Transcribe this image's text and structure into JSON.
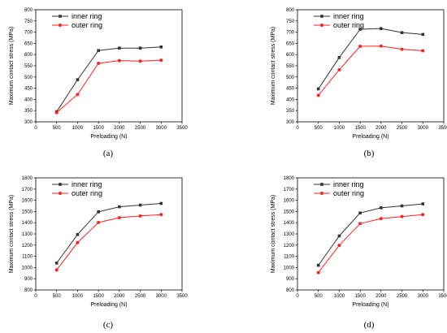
{
  "chart_data": [
    {
      "type": "line",
      "caption": "(a)",
      "xlabel": "Preloading (N)",
      "ylabel": "Maximum contact stress (MPa)",
      "xlim": [
        0,
        3500
      ],
      "ylim": [
        300,
        800
      ],
      "xticks": [
        0,
        500,
        1000,
        1500,
        2000,
        2500,
        3000,
        3500
      ],
      "yticks": [
        300,
        350,
        400,
        450,
        500,
        550,
        600,
        650,
        700,
        750,
        800
      ],
      "x": [
        500,
        1000,
        1500,
        2000,
        2500,
        3000
      ],
      "series": [
        {
          "name": "inner ring",
          "color": "#333333",
          "marker": "square",
          "values": [
            345,
            488,
            618,
            629,
            629,
            634
          ]
        },
        {
          "name": "outer ring",
          "color": "#ff2222",
          "marker": "circle",
          "values": [
            341,
            422,
            561,
            573,
            571,
            575
          ]
        }
      ],
      "legend": "top-left"
    },
    {
      "type": "line",
      "caption": "(b)",
      "xlabel": "Preloading (N)",
      "ylabel": "Maximum contact stress (MPa)",
      "xlim": [
        0,
        3500
      ],
      "ylim": [
        300,
        800
      ],
      "xticks": [
        0,
        500,
        1000,
        1500,
        2000,
        2500,
        3000,
        3500
      ],
      "yticks": [
        300,
        350,
        400,
        450,
        500,
        550,
        600,
        650,
        700,
        750,
        800
      ],
      "x": [
        500,
        1000,
        1500,
        2000,
        2500,
        3000
      ],
      "series": [
        {
          "name": "inner ring",
          "color": "#333333",
          "marker": "square",
          "values": [
            447,
            587,
            713,
            716,
            698,
            690
          ]
        },
        {
          "name": "outer ring",
          "color": "#ff2222",
          "marker": "circle",
          "values": [
            418,
            532,
            637,
            638,
            624,
            617
          ]
        }
      ],
      "legend": "top-left"
    },
    {
      "type": "line",
      "caption": "(c)",
      "xlabel": "Preloading (N)",
      "ylabel": "Maximum contact stress (MPa)",
      "xlim": [
        0,
        3500
      ],
      "ylim": [
        800,
        1800
      ],
      "xticks": [
        0,
        500,
        1000,
        1500,
        2000,
        2500,
        3000,
        3500
      ],
      "yticks": [
        800,
        900,
        1000,
        1100,
        1200,
        1300,
        1400,
        1500,
        1600,
        1700,
        1800
      ],
      "x": [
        500,
        1000,
        1500,
        2000,
        2500,
        3000
      ],
      "series": [
        {
          "name": "inner ring",
          "color": "#333333",
          "marker": "square",
          "values": [
            1040,
            1295,
            1497,
            1542,
            1557,
            1572
          ]
        },
        {
          "name": "outer ring",
          "color": "#ff2222",
          "marker": "circle",
          "values": [
            978,
            1222,
            1402,
            1445,
            1460,
            1472
          ]
        }
      ],
      "legend": "top-left"
    },
    {
      "type": "line",
      "caption": "(d)",
      "xlabel": "Preloading (N)",
      "ylabel": "Maximum contact stress (MPa)",
      "xlim": [
        0,
        3500
      ],
      "ylim": [
        800,
        1800
      ],
      "xticks": [
        0,
        500,
        1000,
        1500,
        2000,
        2500,
        3000,
        3500
      ],
      "yticks": [
        800,
        900,
        1000,
        1100,
        1200,
        1300,
        1400,
        1500,
        1600,
        1700,
        1800
      ],
      "x": [
        500,
        1000,
        1500,
        2000,
        2500,
        3000
      ],
      "series": [
        {
          "name": "inner ring",
          "color": "#333333",
          "marker": "square",
          "values": [
            1020,
            1282,
            1487,
            1533,
            1550,
            1568
          ]
        },
        {
          "name": "outer ring",
          "color": "#ff2222",
          "marker": "circle",
          "values": [
            955,
            1198,
            1392,
            1437,
            1455,
            1472
          ]
        }
      ],
      "legend": "top-left"
    }
  ]
}
